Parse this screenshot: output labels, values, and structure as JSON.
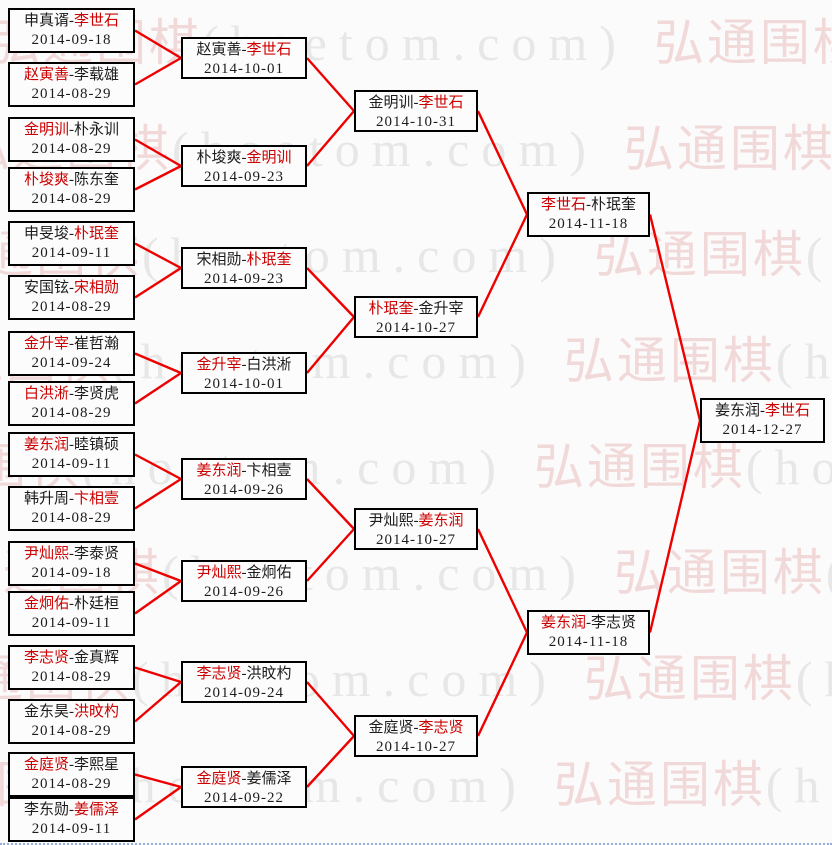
{
  "site_watermark": {
    "cn": "弘通围棋",
    "en": "(hoetom.com)"
  },
  "colors": {
    "winner_text": "#cc0000",
    "loser_text": "#1c1c1c",
    "connector_line": "#ee0000",
    "box_border": "#000000",
    "watermark_cn": "#f2d9d9",
    "watermark_en": "#e7e7e7",
    "bottom_line": "#93abdd",
    "background": "#fbfbfb"
  },
  "bracket": {
    "rounds": [
      {
        "name": "round-of-32",
        "matches": [
          {
            "p1": "申真谞",
            "p2": "李世石",
            "winner": 2,
            "date": "2014-09-18"
          },
          {
            "p1": "赵寅善",
            "p2": "李载雄",
            "winner": 1,
            "date": "2014-08-29"
          },
          {
            "p1": "金明训",
            "p2": "朴永训",
            "winner": 1,
            "date": "2014-08-29"
          },
          {
            "p1": "朴埈爽",
            "p2": "陈东奎",
            "winner": 1,
            "date": "2014-08-29"
          },
          {
            "p1": "申旻埈",
            "p2": "朴珉奎",
            "winner": 2,
            "date": "2014-09-11"
          },
          {
            "p1": "安国铉",
            "p2": "宋相勋",
            "winner": 2,
            "date": "2014-08-29"
          },
          {
            "p1": "金升宰",
            "p2": "崔哲瀚",
            "winner": 1,
            "date": "2014-09-24"
          },
          {
            "p1": "白洪淅",
            "p2": "李贤虎",
            "winner": 1,
            "date": "2014-08-29"
          },
          {
            "p1": "姜东润",
            "p2": "睦镇硕",
            "winner": 1,
            "date": "2014-09-11"
          },
          {
            "p1": "韩升周",
            "p2": "卞相壹",
            "winner": 2,
            "date": "2014-08-29"
          },
          {
            "p1": "尹灿熙",
            "p2": "李泰贤",
            "winner": 1,
            "date": "2014-09-18"
          },
          {
            "p1": "金炯佑",
            "p2": "朴廷桓",
            "winner": 1,
            "date": "2014-09-11"
          },
          {
            "p1": "李志贤",
            "p2": "金真辉",
            "winner": 1,
            "date": "2014-08-29"
          },
          {
            "p1": "金东昊",
            "p2": "洪旼杓",
            "winner": 2,
            "date": "2014-08-29"
          },
          {
            "p1": "金庭贤",
            "p2": "李熙星",
            "winner": 1,
            "date": "2014-08-29"
          },
          {
            "p1": "李东勋",
            "p2": "姜儒泽",
            "winner": 2,
            "date": "2014-09-11"
          }
        ]
      },
      {
        "name": "round-of-16",
        "matches": [
          {
            "p1": "赵寅善",
            "p2": "李世石",
            "winner": 2,
            "date": "2014-10-01"
          },
          {
            "p1": "朴埈爽",
            "p2": "金明训",
            "winner": 2,
            "date": "2014-09-23"
          },
          {
            "p1": "宋相勋",
            "p2": "朴珉奎",
            "winner": 2,
            "date": "2014-09-23"
          },
          {
            "p1": "金升宰",
            "p2": "白洪淅",
            "winner": 1,
            "date": "2014-10-01"
          },
          {
            "p1": "姜东润",
            "p2": "卞相壹",
            "winner": 1,
            "date": "2014-09-26"
          },
          {
            "p1": "尹灿熙",
            "p2": "金炯佑",
            "winner": 1,
            "date": "2014-09-26"
          },
          {
            "p1": "李志贤",
            "p2": "洪旼杓",
            "winner": 1,
            "date": "2014-09-24"
          },
          {
            "p1": "金庭贤",
            "p2": "姜儒泽",
            "winner": 1,
            "date": "2014-09-22"
          }
        ]
      },
      {
        "name": "quarterfinals",
        "matches": [
          {
            "p1": "金明训",
            "p2": "李世石",
            "winner": 2,
            "date": "2014-10-31"
          },
          {
            "p1": "朴珉奎",
            "p2": "金升宰",
            "winner": 1,
            "date": "2014-10-27"
          },
          {
            "p1": "尹灿熙",
            "p2": "姜东润",
            "winner": 2,
            "date": "2014-10-27"
          },
          {
            "p1": "金庭贤",
            "p2": "李志贤",
            "winner": 2,
            "date": "2014-10-27"
          }
        ]
      },
      {
        "name": "semifinals",
        "matches": [
          {
            "p1": "李世石",
            "p2": "朴珉奎",
            "winner": 1,
            "date": "2014-11-18"
          },
          {
            "p1": "姜东润",
            "p2": "李志贤",
            "winner": 1,
            "date": "2014-11-18"
          }
        ]
      },
      {
        "name": "final",
        "matches": [
          {
            "p1": "姜东润",
            "p2": "李世石",
            "winner": 2,
            "date": "2014-12-27"
          }
        ]
      }
    ]
  }
}
